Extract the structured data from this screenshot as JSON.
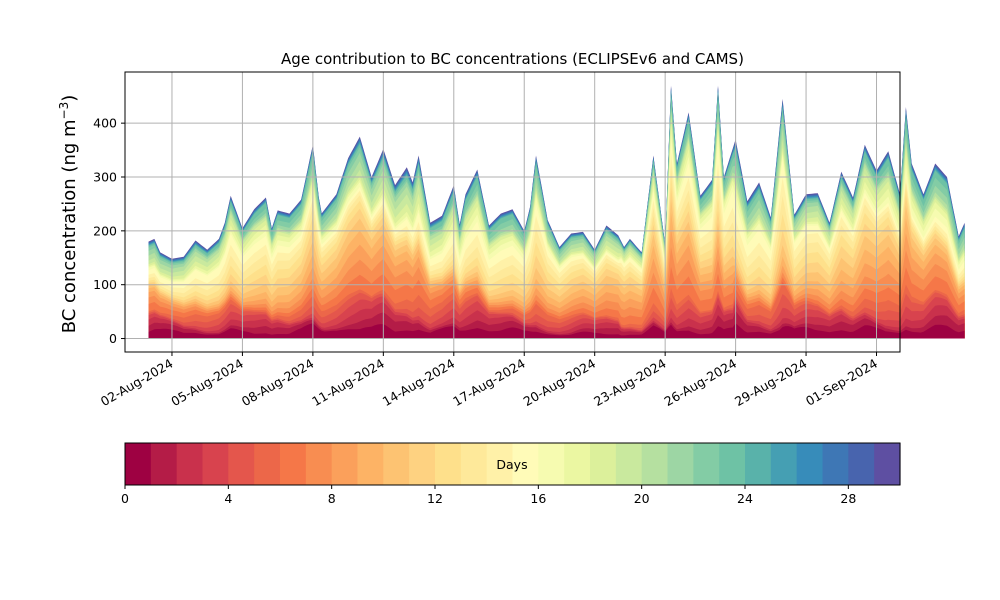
{
  "chart_data": {
    "type": "area",
    "title": "Age contribution to BC concentrations (ECLIPSEv6 and CAMS)",
    "ylabel": "BC concentration (ng m",
    "ylabel_superscript": "−3",
    "ylabel_close": ")",
    "ylim": [
      -25,
      495
    ],
    "yticks": [
      0,
      100,
      200,
      300,
      400
    ],
    "grid": true,
    "x_start": "2024-07-31",
    "x_end": "2024-09-02",
    "xticks": [
      "02-Aug-2024",
      "05-Aug-2024",
      "08-Aug-2024",
      "11-Aug-2024",
      "14-Aug-2024",
      "17-Aug-2024",
      "20-Aug-2024",
      "23-Aug-2024",
      "26-Aug-2024",
      "29-Aug-2024",
      "01-Sep-2024"
    ],
    "stacked_by": "age in days (0–30)",
    "total": [
      [
        "2024-08-01 00:00",
        180
      ],
      [
        "2024-08-01 06:00",
        185
      ],
      [
        "2024-08-01 12:00",
        160
      ],
      [
        "2024-08-02 00:00",
        148
      ],
      [
        "2024-08-02 12:00",
        152
      ],
      [
        "2024-08-03 00:00",
        182
      ],
      [
        "2024-08-03 12:00",
        165
      ],
      [
        "2024-08-04 00:00",
        185
      ],
      [
        "2024-08-04 06:00",
        215
      ],
      [
        "2024-08-04 12:00",
        265
      ],
      [
        "2024-08-05 00:00",
        205
      ],
      [
        "2024-08-05 12:00",
        240
      ],
      [
        "2024-08-06 00:00",
        262
      ],
      [
        "2024-08-06 06:00",
        205
      ],
      [
        "2024-08-06 12:00",
        238
      ],
      [
        "2024-08-07 00:00",
        232
      ],
      [
        "2024-08-07 12:00",
        258
      ],
      [
        "2024-08-08 00:00",
        360
      ],
      [
        "2024-08-08 08:00",
        230
      ],
      [
        "2024-08-09 00:00",
        268
      ],
      [
        "2024-08-09 12:00",
        335
      ],
      [
        "2024-08-10 00:00",
        375
      ],
      [
        "2024-08-10 12:00",
        300
      ],
      [
        "2024-08-11 00:00",
        352
      ],
      [
        "2024-08-11 12:00",
        285
      ],
      [
        "2024-08-12 00:00",
        318
      ],
      [
        "2024-08-12 06:00",
        290
      ],
      [
        "2024-08-12 12:00",
        340
      ],
      [
        "2024-08-13 00:00",
        215
      ],
      [
        "2024-08-13 12:00",
        228
      ],
      [
        "2024-08-14 00:00",
        285
      ],
      [
        "2024-08-14 06:00",
        212
      ],
      [
        "2024-08-14 12:00",
        268
      ],
      [
        "2024-08-15 00:00",
        314
      ],
      [
        "2024-08-15 12:00",
        210
      ],
      [
        "2024-08-16 00:00",
        232
      ],
      [
        "2024-08-16 12:00",
        240
      ],
      [
        "2024-08-17 00:00",
        200
      ],
      [
        "2024-08-17 06:00",
        245
      ],
      [
        "2024-08-17 12:00",
        340
      ],
      [
        "2024-08-18 00:00",
        220
      ],
      [
        "2024-08-18 12:00",
        170
      ],
      [
        "2024-08-19 00:00",
        195
      ],
      [
        "2024-08-19 12:00",
        198
      ],
      [
        "2024-08-20 00:00",
        165
      ],
      [
        "2024-08-20 12:00",
        210
      ],
      [
        "2024-08-21 00:00",
        192
      ],
      [
        "2024-08-21 06:00",
        170
      ],
      [
        "2024-08-21 12:00",
        185
      ],
      [
        "2024-08-22 00:00",
        160
      ],
      [
        "2024-08-22 12:00",
        340
      ],
      [
        "2024-08-23 00:00",
        175
      ],
      [
        "2024-08-23 06:00",
        470
      ],
      [
        "2024-08-23 12:00",
        325
      ],
      [
        "2024-08-24 00:00",
        420
      ],
      [
        "2024-08-24 12:00",
        265
      ],
      [
        "2024-08-25 00:00",
        295
      ],
      [
        "2024-08-25 06:00",
        470
      ],
      [
        "2024-08-25 12:00",
        300
      ],
      [
        "2024-08-26 00:00",
        370
      ],
      [
        "2024-08-26 12:00",
        255
      ],
      [
        "2024-08-27 00:00",
        290
      ],
      [
        "2024-08-27 12:00",
        225
      ],
      [
        "2024-08-28 00:00",
        445
      ],
      [
        "2024-08-28 12:00",
        230
      ],
      [
        "2024-08-29 00:00",
        268
      ],
      [
        "2024-08-29 12:00",
        270
      ],
      [
        "2024-08-30 00:00",
        215
      ],
      [
        "2024-08-30 12:00",
        310
      ],
      [
        "2024-08-31 00:00",
        262
      ],
      [
        "2024-08-31 12:00",
        360
      ],
      [
        "2024-09-01 00:00",
        312
      ],
      [
        "2024-09-01 12:00",
        348
      ],
      [
        "2024-09-02 00:00",
        268
      ],
      [
        "2024-09-02 06:00",
        430
      ],
      [
        "2024-09-02 12:00",
        325
      ],
      [
        "2024-09-03 00:00",
        268
      ],
      [
        "2024-09-03 12:00",
        325
      ],
      [
        "2024-09-04 00:00",
        300
      ],
      [
        "2024-09-04 12:00",
        190
      ],
      [
        "2024-09-04 18:00",
        215
      ]
    ],
    "colorbar": {
      "label": "Days",
      "min": 0,
      "max": 30,
      "ticks": [
        0,
        4,
        8,
        12,
        16,
        20,
        24,
        28
      ],
      "bins": 30,
      "colors": [
        "#9e0142",
        "#b41c47",
        "#c9314c",
        "#d8434e",
        "#e4564c",
        "#ec6749",
        "#f57748",
        "#f88d51",
        "#fba05b",
        "#fdb365",
        "#fdc372",
        "#fed281",
        "#fee08b",
        "#fee99a",
        "#fff1a8",
        "#fffbb8",
        "#f6fbb0",
        "#ebf7a2",
        "#dcf09b",
        "#c9e99e",
        "#b5e0a0",
        "#9dd6a4",
        "#83cca5",
        "#6ec2a5",
        "#59b2aa",
        "#459fb3",
        "#378cba",
        "#3e77b5",
        "#4864ae",
        "#5e4fa2"
      ]
    }
  }
}
